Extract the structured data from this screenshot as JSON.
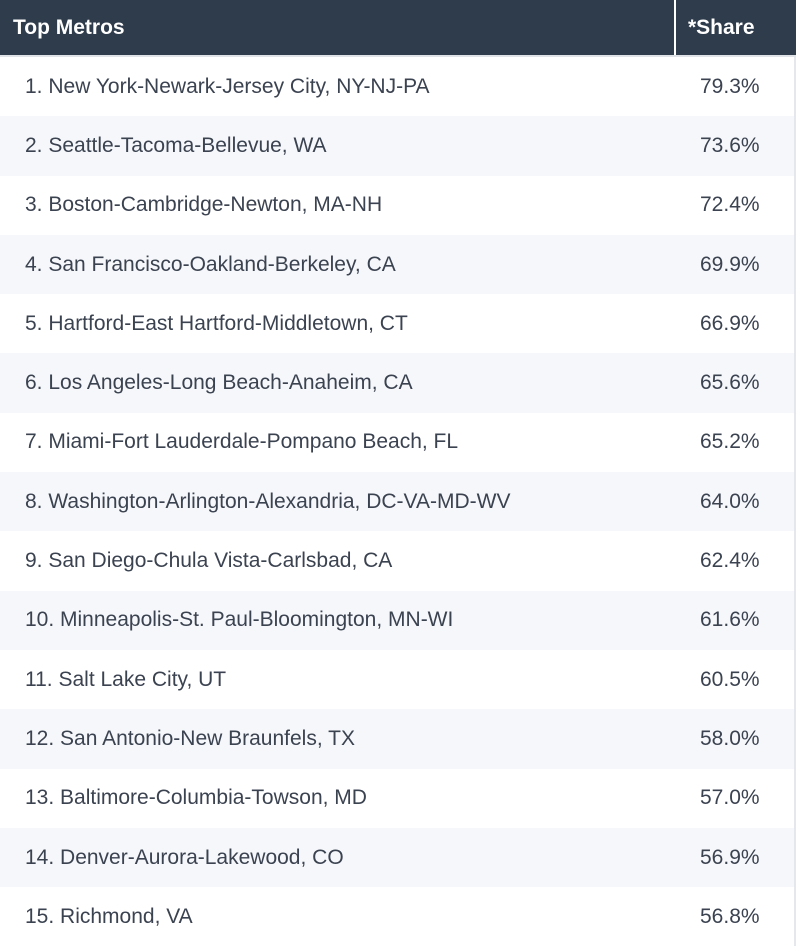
{
  "table": {
    "headers": {
      "metro": "Top Metros",
      "share": "*Share"
    },
    "rows": [
      {
        "metro": "1. New York-Newark-Jersey City, NY-NJ-PA",
        "share": "79.3%"
      },
      {
        "metro": "2. Seattle-Tacoma-Bellevue, WA",
        "share": "73.6%"
      },
      {
        "metro": "3. Boston-Cambridge-Newton, MA-NH",
        "share": "72.4%"
      },
      {
        "metro": "4. San Francisco-Oakland-Berkeley, CA",
        "share": "69.9%"
      },
      {
        "metro": "5. Hartford-East Hartford-Middletown, CT",
        "share": "66.9%"
      },
      {
        "metro": "6. Los Angeles-Long Beach-Anaheim, CA",
        "share": "65.6%"
      },
      {
        "metro": "7. Miami-Fort Lauderdale-Pompano Beach, FL",
        "share": "65.2%"
      },
      {
        "metro": "8. Washington-Arlington-Alexandria, DC-VA-MD-WV",
        "share": "64.0%"
      },
      {
        "metro": "9. San Diego-Chula Vista-Carlsbad, CA",
        "share": "62.4%"
      },
      {
        "metro": "10. Minneapolis-St. Paul-Bloomington, MN-WI",
        "share": "61.6%"
      },
      {
        "metro": "11. Salt Lake City, UT",
        "share": "60.5%"
      },
      {
        "metro": "12. San Antonio-New Braunfels, TX",
        "share": "58.0%"
      },
      {
        "metro": "13. Baltimore-Columbia-Towson, MD",
        "share": "57.0%"
      },
      {
        "metro": "14. Denver-Aurora-Lakewood, CO",
        "share": "56.9%"
      },
      {
        "metro": "15. Richmond, VA",
        "share": "56.8%"
      }
    ],
    "colors": {
      "header_bg": "#2f3c4c",
      "header_text": "#ffffff",
      "row_text": "#3b4250",
      "row_alt_bg": "#f5f7fa"
    }
  }
}
